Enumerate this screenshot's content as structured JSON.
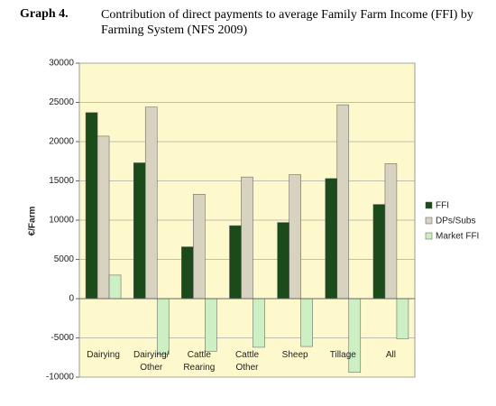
{
  "chart_data": {
    "type": "bar",
    "label": "Graph 4.",
    "title": "Contribution of direct payments to average Family Farm Income (FFI) by Farming System (NFS 2009)",
    "y_label": "€/Farm",
    "categories": [
      "Dairying",
      "Dairying/ Other",
      "Cattle Rearing",
      "Cattle Other",
      "Sheep",
      "Tillage",
      "All"
    ],
    "series": [
      {
        "name": "FFI",
        "color": "#1b4a1b",
        "values": [
          23700,
          17300,
          6600,
          9300,
          9700,
          15300,
          12000
        ]
      },
      {
        "name": "DPs/Subs",
        "color": "#d8d3c0",
        "values": [
          20700,
          24400,
          13300,
          15500,
          15800,
          24700,
          17200
        ]
      },
      {
        "name": "Market FFI",
        "color": "#ccf0c4",
        "values": [
          3000,
          -7100,
          -6700,
          -6200,
          -6100,
          -9400,
          -5100
        ]
      }
    ],
    "ylim": [
      -10000,
      30000
    ],
    "yticks": [
      -10000,
      -5000,
      0,
      5000,
      10000,
      15000,
      20000,
      25000,
      30000
    ],
    "grid": true,
    "legend": "right"
  }
}
